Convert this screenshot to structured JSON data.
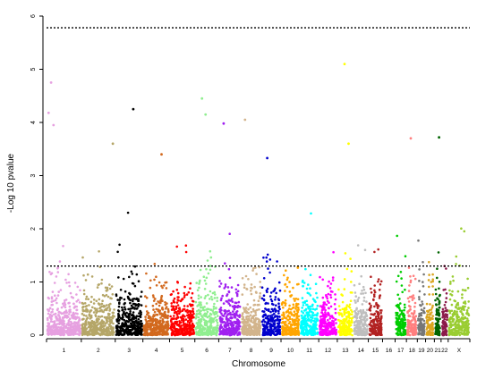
{
  "chart_data": {
    "type": "scatter",
    "subtype": "manhattan",
    "title": "",
    "xlabel": "Chromosome",
    "ylabel": "-Log 10 pvalue",
    "ylim": [
      0,
      6
    ],
    "yticks": [
      0,
      1,
      2,
      3,
      4,
      5,
      6
    ],
    "grid": false,
    "legend": "none",
    "thresholds": [
      {
        "y": 5.78,
        "style": "dotted"
      },
      {
        "y": 1.3,
        "style": "dotted"
      }
    ],
    "chromosomes": [
      {
        "label": "1",
        "size": 249,
        "color": "#e6a0e0"
      },
      {
        "label": "2",
        "size": 243,
        "color": "#b5a668"
      },
      {
        "label": "3",
        "size": 198,
        "color": "#000000"
      },
      {
        "label": "4",
        "size": 191,
        "color": "#d2691e"
      },
      {
        "label": "5",
        "size": 181,
        "color": "#ff0000"
      },
      {
        "label": "6",
        "size": 171,
        "color": "#90ee90"
      },
      {
        "label": "7",
        "size": 159,
        "color": "#a020f0"
      },
      {
        "label": "8",
        "size": 146,
        "color": "#d2b48c"
      },
      {
        "label": "9",
        "size": 141,
        "color": "#0000cd"
      },
      {
        "label": "10",
        "size": 135,
        "color": "#ffa500"
      },
      {
        "label": "11",
        "size": 135,
        "color": "#00ffff"
      },
      {
        "label": "12",
        "size": 133,
        "color": "#ff00ff"
      },
      {
        "label": "13",
        "size": 115,
        "color": "#ffff00"
      },
      {
        "label": "14",
        "size": 107,
        "color": "#bebebe"
      },
      {
        "label": "15",
        "size": 102,
        "color": "#b22222"
      },
      {
        "label": "16",
        "size": 90,
        "color": "#ffffff"
      },
      {
        "label": "17",
        "size": 81,
        "color": "#00cd00"
      },
      {
        "label": "18",
        "size": 78,
        "color": "#ff7f7f"
      },
      {
        "label": "19",
        "size": 59,
        "color": "#777777"
      },
      {
        "label": "20",
        "size": 63,
        "color": "#daa520"
      },
      {
        "label": "21",
        "size": 48,
        "color": "#006400"
      },
      {
        "label": "22",
        "size": 51,
        "color": "#8b1a4a"
      },
      {
        "label": "X",
        "size": 155,
        "color": "#9acd32"
      }
    ],
    "top_hits": [
      {
        "chr": "1",
        "pos": 0.13,
        "y": 4.75
      },
      {
        "chr": "1",
        "pos": 0.06,
        "y": 4.18
      },
      {
        "chr": "1",
        "pos": 0.2,
        "y": 3.95
      },
      {
        "chr": "2",
        "pos": 0.93,
        "y": 3.6
      },
      {
        "chr": "3",
        "pos": 0.65,
        "y": 4.25
      },
      {
        "chr": "4",
        "pos": 0.7,
        "y": 3.4
      },
      {
        "chr": "6",
        "pos": 0.3,
        "y": 4.45
      },
      {
        "chr": "6",
        "pos": 0.45,
        "y": 4.15
      },
      {
        "chr": "7",
        "pos": 0.22,
        "y": 3.98
      },
      {
        "chr": "8",
        "pos": 0.2,
        "y": 4.05
      },
      {
        "chr": "9",
        "pos": 0.3,
        "y": 3.33
      },
      {
        "chr": "13",
        "pos": 0.45,
        "y": 5.1
      },
      {
        "chr": "13",
        "pos": 0.7,
        "y": 3.6
      },
      {
        "chr": "18",
        "pos": 0.4,
        "y": 3.7
      },
      {
        "chr": "21",
        "pos": 0.7,
        "y": 3.72
      }
    ]
  }
}
